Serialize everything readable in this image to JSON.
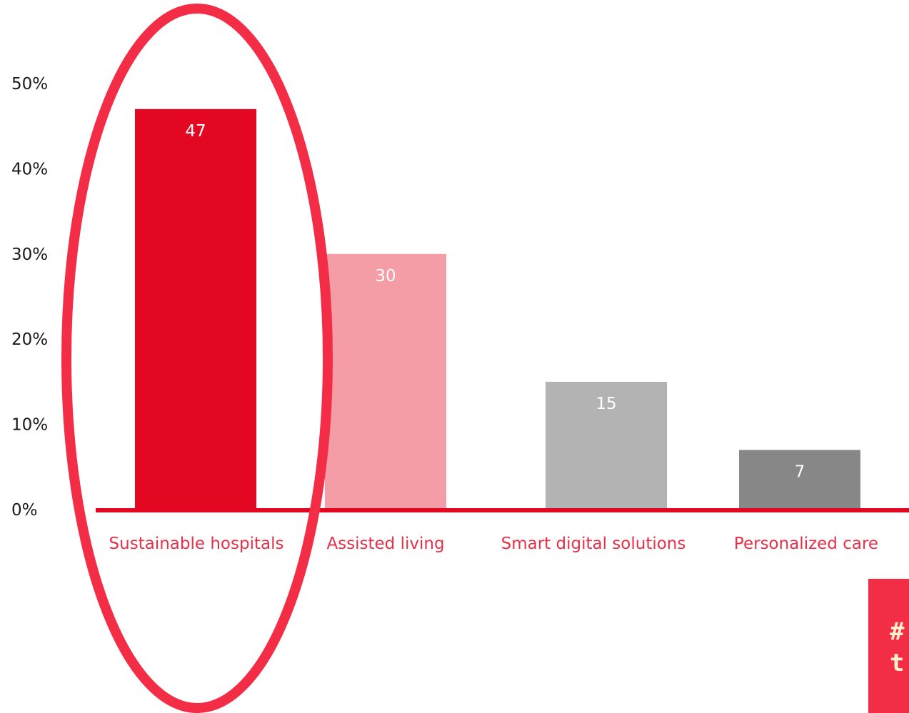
{
  "chart_data": {
    "type": "bar",
    "categories": [
      "Sustainable hospitals",
      "Assisted living",
      "Smart digital solutions",
      "Personalized care"
    ],
    "values": [
      47,
      30,
      15,
      7
    ],
    "data_labels": [
      "47",
      "30",
      "15",
      "7"
    ],
    "yticks": [
      "0%",
      "10%",
      "20%",
      "30%",
      "40%",
      "50%"
    ],
    "ylim": [
      0,
      50
    ],
    "title": "",
    "xlabel": "",
    "ylabel": "",
    "grid": false,
    "legend": "none",
    "highlighted_category": "Sustainable hospitals",
    "colors": {
      "bars": [
        "#e30722",
        "#f49da6",
        "#b3b3b3",
        "#878787"
      ],
      "category_text": "#e8304a",
      "axis_line": "#e30722",
      "tick_text": "#1a1a1a",
      "data_label_text": "#ffffff",
      "highlight_ring": "#f42d47"
    }
  },
  "callout": {
    "lines": [
      "#",
      "t"
    ]
  }
}
